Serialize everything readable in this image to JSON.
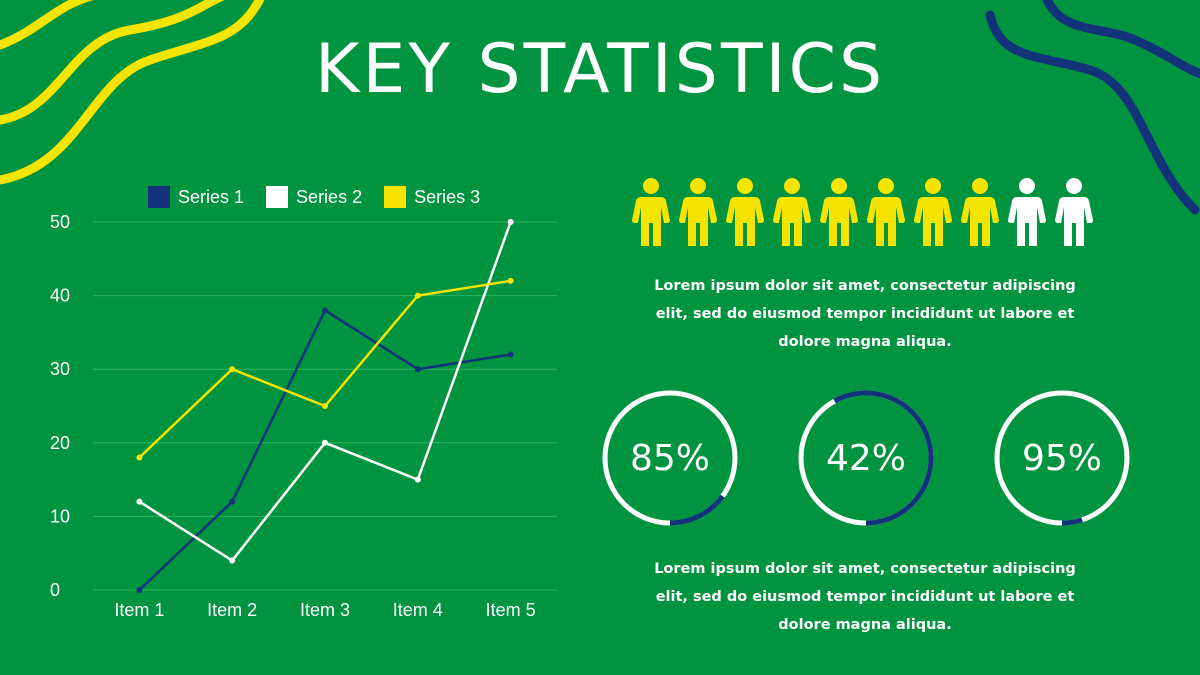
{
  "title": "KEY STATISTICS",
  "colors": {
    "background": "#009340",
    "navy": "#12327a",
    "white": "#ffffff",
    "yellow": "#f5e400",
    "gridline": "#2fb35c",
    "ring_track": "#ffffff",
    "ring_fill": "#12327a"
  },
  "chart_data": {
    "type": "line",
    "categories": [
      "Item 1",
      "Item 2",
      "Item 3",
      "Item 4",
      "Item 5"
    ],
    "series": [
      {
        "name": "Series 1",
        "color": "#12327a",
        "values": [
          0,
          12,
          38,
          30,
          32
        ]
      },
      {
        "name": "Series 2",
        "color": "#ffffff",
        "values": [
          12,
          4,
          20,
          15,
          50
        ]
      },
      {
        "name": "Series 3",
        "color": "#f5e400",
        "values": [
          18,
          30,
          25,
          40,
          42
        ]
      }
    ],
    "ylim": [
      0,
      50
    ],
    "yticks": [
      "0",
      "10",
      "20",
      "30",
      "40",
      "50"
    ],
    "grid": true,
    "legend": "top"
  },
  "people": {
    "icon": "person-icon",
    "highlighted": 8,
    "total": 10
  },
  "blurb_top": "Lorem ipsum dolor sit amet, consectetur adipiscing elit, sed do eiusmod tempor incididunt ut labore et dolore magna aliqua.",
  "blurb_bottom": "Lorem ipsum dolor sit amet, consectetur adipiscing elit, sed do eiusmod tempor incididunt ut labore et dolore magna aliqua.",
  "rings": [
    {
      "label": "85%",
      "value": 0.85
    },
    {
      "label": "42%",
      "value": 0.42
    },
    {
      "label": "95%",
      "value": 0.95
    }
  ]
}
